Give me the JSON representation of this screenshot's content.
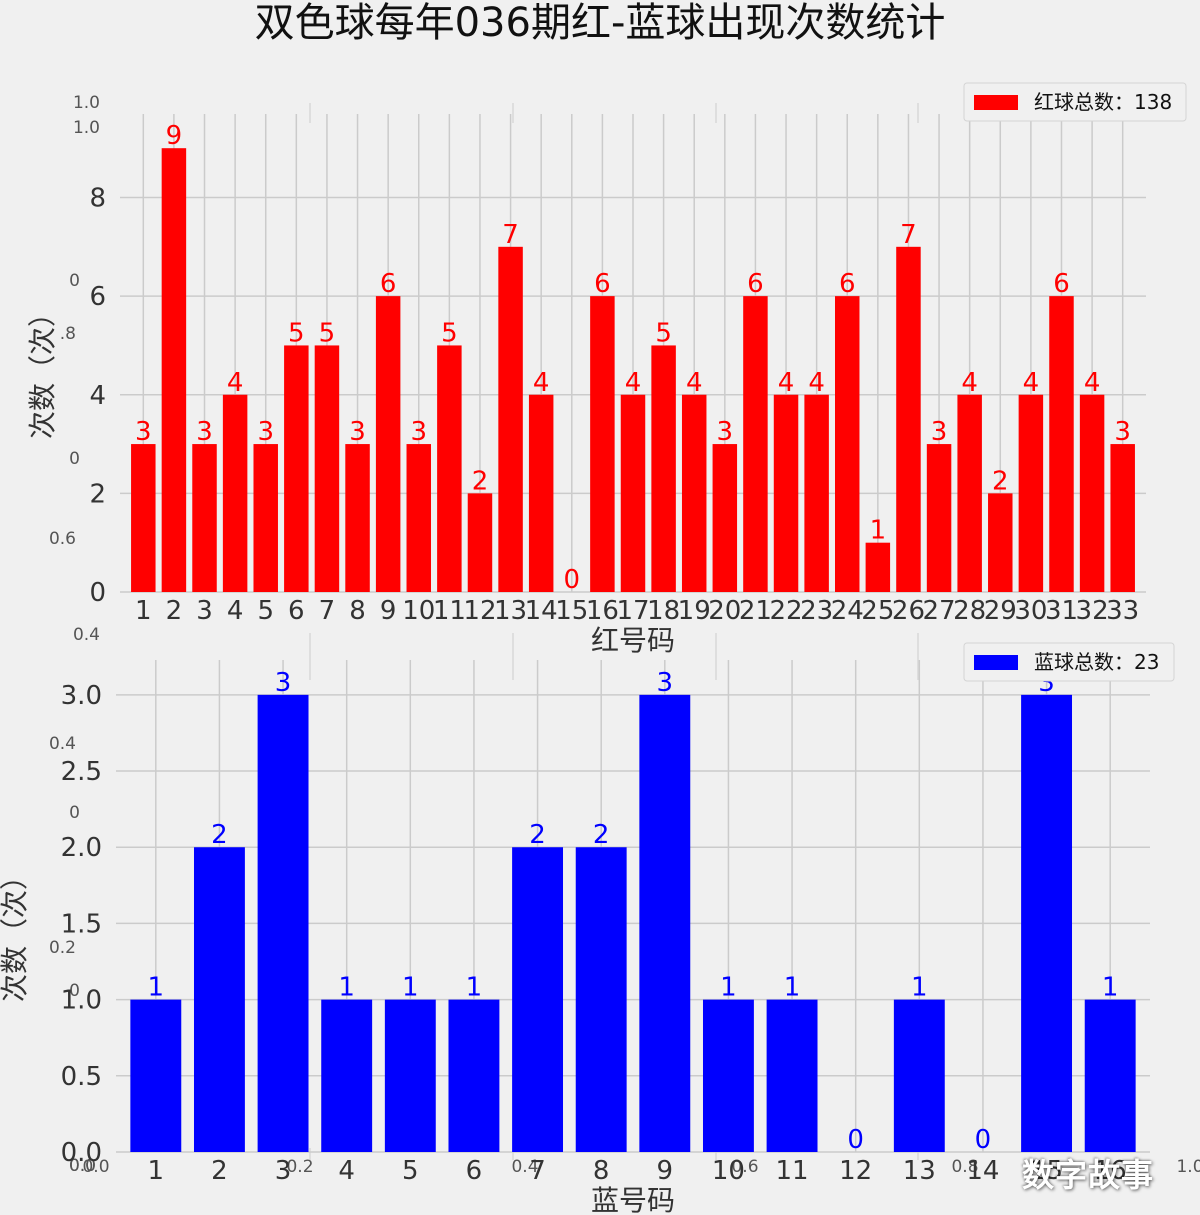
{
  "page": {
    "title": "双色球每年036期红-蓝球出现次数统计",
    "watermark": "数字故事"
  },
  "chart_data": [
    {
      "type": "bar",
      "title": "",
      "xlabel": "红号码",
      "ylabel": "次数（次）",
      "categories": [
        "1",
        "2",
        "3",
        "4",
        "5",
        "6",
        "7",
        "8",
        "9",
        "10",
        "11",
        "12",
        "13",
        "14",
        "15",
        "16",
        "17",
        "18",
        "19",
        "20",
        "21",
        "22",
        "23",
        "24",
        "25",
        "26",
        "27",
        "28",
        "29",
        "30",
        "31",
        "32",
        "33"
      ],
      "values": [
        3,
        9,
        3,
        4,
        3,
        5,
        5,
        3,
        6,
        3,
        5,
        2,
        7,
        4,
        0,
        6,
        4,
        5,
        4,
        3,
        6,
        4,
        4,
        6,
        1,
        7,
        3,
        4,
        2,
        4,
        6,
        4,
        3
      ],
      "ylim": [
        0,
        9.45
      ],
      "yticks": [
        0,
        2,
        4,
        6,
        8
      ],
      "ytick_labels": [
        "0",
        "2",
        "4",
        "6",
        "8"
      ],
      "legend": {
        "label": "红球总数：138",
        "position": "top-right"
      },
      "color": "#ff0000",
      "grid": true
    },
    {
      "type": "bar",
      "title": "",
      "xlabel": "蓝号码",
      "ylabel": "次数（次）",
      "categories": [
        "1",
        "2",
        "3",
        "4",
        "5",
        "6",
        "7",
        "8",
        "9",
        "10",
        "11",
        "12",
        "13",
        "14",
        "15",
        "16"
      ],
      "values": [
        1,
        2,
        3,
        1,
        1,
        1,
        2,
        2,
        3,
        1,
        1,
        0,
        1,
        0,
        3,
        1
      ],
      "ylim": [
        0,
        3.15
      ],
      "yticks": [
        0,
        0.5,
        1.0,
        1.5,
        2.0,
        2.5,
        3.0
      ],
      "ytick_labels": [
        "0.0",
        "0.5",
        "1.0",
        "1.5",
        "2.0",
        "2.5",
        "3.0"
      ],
      "legend": {
        "label": "蓝球总数：23",
        "position": "top-right"
      },
      "color": "#0000ff",
      "grid": true
    }
  ],
  "ghost_axis": {
    "left_labels": [
      "1.0",
      "1.0",
      "0",
      ".8",
      "0",
      "0.6",
      "0.4",
      "0.4",
      "0",
      "0.2",
      "0",
      "0.0",
      "0.0"
    ],
    "bottom_labels": [
      "0.0",
      "0.2",
      "0.4",
      "0.6",
      "0.8",
      "1.0"
    ]
  }
}
